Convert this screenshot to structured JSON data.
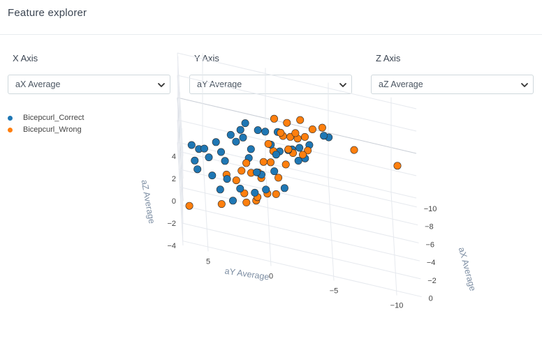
{
  "header": {
    "title": "Feature explorer"
  },
  "controls": [
    {
      "label": "X Axis",
      "selected": "aX Average"
    },
    {
      "label": "Y Axis",
      "selected": "aY Average"
    },
    {
      "label": "Z Axis",
      "selected": "aZ Average"
    }
  ],
  "legend": [
    {
      "name": "Bicepcurl_Correct",
      "color": "#1f77b4"
    },
    {
      "name": "Bicepcurl_Wrong",
      "color": "#ff7f0e"
    }
  ],
  "chart_data": {
    "type": "scatter",
    "title": "",
    "xlabel": "aX Average",
    "ylabel": "aY Average",
    "zlabel": "aZ Average",
    "x_ticks": [
      "0",
      "−2",
      "−4",
      "−6",
      "−8",
      "−10"
    ],
    "y_ticks": [
      "5",
      "0",
      "−5",
      "−10"
    ],
    "z_ticks": [
      "4",
      "2",
      "0",
      "−2",
      "−4"
    ],
    "xlim": [
      -11,
      0.5
    ],
    "ylim": [
      -12,
      7
    ],
    "zlim": [
      -4,
      4.5
    ],
    "series": [
      {
        "name": "Bicepcurl_Correct",
        "color": "#1f77b4",
        "points": [
          {
            "x": -2.5,
            "y": 6.2,
            "z": 2.8
          },
          {
            "x": -1.2,
            "y": 6.0,
            "z": 2.5
          },
          {
            "x": -3.0,
            "y": 5.6,
            "z": 2.2
          },
          {
            "x": -0.8,
            "y": 5.8,
            "z": 2.1
          },
          {
            "x": -3.2,
            "y": 4.8,
            "z": 1.5
          },
          {
            "x": -1.5,
            "y": 4.6,
            "z": 1.3
          },
          {
            "x": -4.0,
            "y": 3.8,
            "z": 1.6
          },
          {
            "x": -3.6,
            "y": 3.5,
            "z": 1.2
          },
          {
            "x": -2.0,
            "y": 3.4,
            "z": 0.9
          },
          {
            "x": -4.8,
            "y": 3.0,
            "z": 2.7
          },
          {
            "x": -4.3,
            "y": 2.6,
            "z": 2.6
          },
          {
            "x": -5.5,
            "y": 2.2,
            "z": 2.8
          },
          {
            "x": -5.2,
            "y": 2.0,
            "z": 2.4
          },
          {
            "x": -3.8,
            "y": 1.6,
            "z": 1.8
          },
          {
            "x": -4.6,
            "y": 1.4,
            "z": 2.0
          },
          {
            "x": -2.9,
            "y": 1.0,
            "z": 1.4
          },
          {
            "x": -3.4,
            "y": 0.6,
            "z": 0.9
          },
          {
            "x": -2.2,
            "y": 0.3,
            "z": 0.6
          },
          {
            "x": -5.8,
            "y": 0.8,
            "z": 2.9
          },
          {
            "x": -6.2,
            "y": 0.2,
            "z": 2.6
          },
          {
            "x": -1.0,
            "y": 2.4,
            "z": 1.1
          },
          {
            "x": -1.8,
            "y": 1.2,
            "z": 0.4
          },
          {
            "x": -5.0,
            "y": -0.2,
            "z": 2.5
          },
          {
            "x": -4.4,
            "y": -0.6,
            "z": 2.2
          },
          {
            "x": -3.1,
            "y": -0.4,
            "z": 1.7
          },
          {
            "x": -6.5,
            "y": -0.8,
            "z": 2.6
          },
          {
            "x": -2.6,
            "y": -1.2,
            "z": 0.8
          },
          {
            "x": -5.6,
            "y": -1.6,
            "z": 1.9
          },
          {
            "x": -7.5,
            "y": -1.0,
            "z": 0.1
          },
          {
            "x": -7.8,
            "y": -2.0,
            "z": 0.3
          },
          {
            "x": -8.3,
            "y": -2.6,
            "z": 0.2
          },
          {
            "x": -8.5,
            "y": -3.4,
            "z": 0.5
          },
          {
            "x": -7.0,
            "y": -3.0,
            "z": 0.4
          },
          {
            "x": -9.8,
            "y": -4.6,
            "z": 0.6
          },
          {
            "x": -10.0,
            "y": -5.0,
            "z": 0.4
          },
          {
            "x": -0.5,
            "y": 4.0,
            "z": 1.0
          },
          {
            "x": -2.3,
            "y": 5.2,
            "z": 2.9
          },
          {
            "x": -0.2,
            "y": 3.0,
            "z": 0.5
          },
          {
            "x": -6.0,
            "y": 1.8,
            "z": 3.1
          },
          {
            "x": -4.1,
            "y": 4.2,
            "z": 2.3
          },
          {
            "x": -5.3,
            "y": -2.4,
            "z": 1.4
          }
        ]
      },
      {
        "name": "Bicepcurl_Wrong",
        "color": "#ff7f0e",
        "points": [
          {
            "x": -5.5,
            "y": -1.5,
            "z": 4.4
          },
          {
            "x": -6.0,
            "y": -0.5,
            "z": 4.1
          },
          {
            "x": -6.8,
            "y": -2.6,
            "z": 3.9
          },
          {
            "x": -5.8,
            "y": -1.2,
            "z": 2.9
          },
          {
            "x": -6.4,
            "y": -1.8,
            "z": 2.5
          },
          {
            "x": -6.9,
            "y": -2.4,
            "z": 2.1
          },
          {
            "x": -7.4,
            "y": -3.0,
            "z": 2.0
          },
          {
            "x": -5.1,
            "y": -0.4,
            "z": 1.9
          },
          {
            "x": -5.9,
            "y": -2.0,
            "z": 1.5
          },
          {
            "x": -4.5,
            "y": 0.4,
            "z": 1.2
          },
          {
            "x": -6.6,
            "y": -2.8,
            "z": 1.0
          },
          {
            "x": -5.3,
            "y": -1.4,
            "z": 0.8
          },
          {
            "x": -4.2,
            "y": 1.4,
            "z": 0.2
          },
          {
            "x": -4.8,
            "y": 0.8,
            "z": -0.1
          },
          {
            "x": -3.6,
            "y": 2.6,
            "z": -0.3
          },
          {
            "x": -5.0,
            "y": -0.8,
            "z": -0.3
          },
          {
            "x": -3.1,
            "y": 3.4,
            "z": 0.4
          },
          {
            "x": -2.6,
            "y": 2.0,
            "z": -0.5
          },
          {
            "x": -3.8,
            "y": 1.8,
            "z": 1.3
          },
          {
            "x": -6.2,
            "y": -2.2,
            "z": 3.1
          },
          {
            "x": -5.6,
            "y": -1.0,
            "z": 3.3
          },
          {
            "x": -4.9,
            "y": 0.0,
            "z": 2.6
          },
          {
            "x": -5.4,
            "y": -0.2,
            "z": 0.6
          },
          {
            "x": -4.0,
            "y": 0.6,
            "z": 0.1
          },
          {
            "x": -2.8,
            "y": 3.8,
            "z": -2.1
          },
          {
            "x": -3.5,
            "y": 1.8,
            "z": -2.0
          },
          {
            "x": -3.9,
            "y": 0.9,
            "z": -1.6
          },
          {
            "x": -4.3,
            "y": 0.1,
            "z": -1.4
          },
          {
            "x": -2.0,
            "y": 6.4,
            "z": -2.3
          },
          {
            "x": -4.6,
            "y": -0.6,
            "z": -1.5
          },
          {
            "x": -4.1,
            "y": 1.0,
            "z": -2.1
          },
          {
            "x": -9.5,
            "y": -7.0,
            "z": 0.2
          },
          {
            "x": -11.0,
            "y": -10.5,
            "z": -1.5
          },
          {
            "x": -7.2,
            "y": -3.6,
            "z": 3.0
          },
          {
            "x": -6.7,
            "y": -3.2,
            "z": 1.4
          },
          {
            "x": -5.2,
            "y": -1.6,
            "z": 2.3
          },
          {
            "x": -3.3,
            "y": 2.2,
            "z": 0.9
          },
          {
            "x": -7.9,
            "y": -4.4,
            "z": 2.8
          }
        ]
      }
    ]
  }
}
